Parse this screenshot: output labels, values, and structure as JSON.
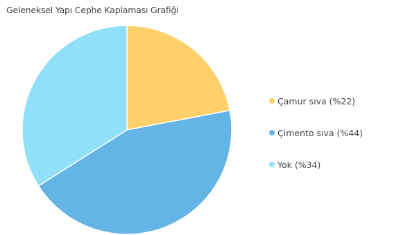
{
  "chart_data": {
    "type": "pie",
    "title": "Geleneksel Yapı Cephe Kaplaması Grafiği",
    "legend_position": "right",
    "slices": [
      {
        "label": "Çamur sıva (%22)",
        "value": 22,
        "color": "#FDD069"
      },
      {
        "label": "Çimento sıva  (%44)",
        "value": 44,
        "color": "#64B4E6"
      },
      {
        "label": "Yok (%34)",
        "value": 34,
        "color": "#8FE0F8"
      }
    ]
  }
}
